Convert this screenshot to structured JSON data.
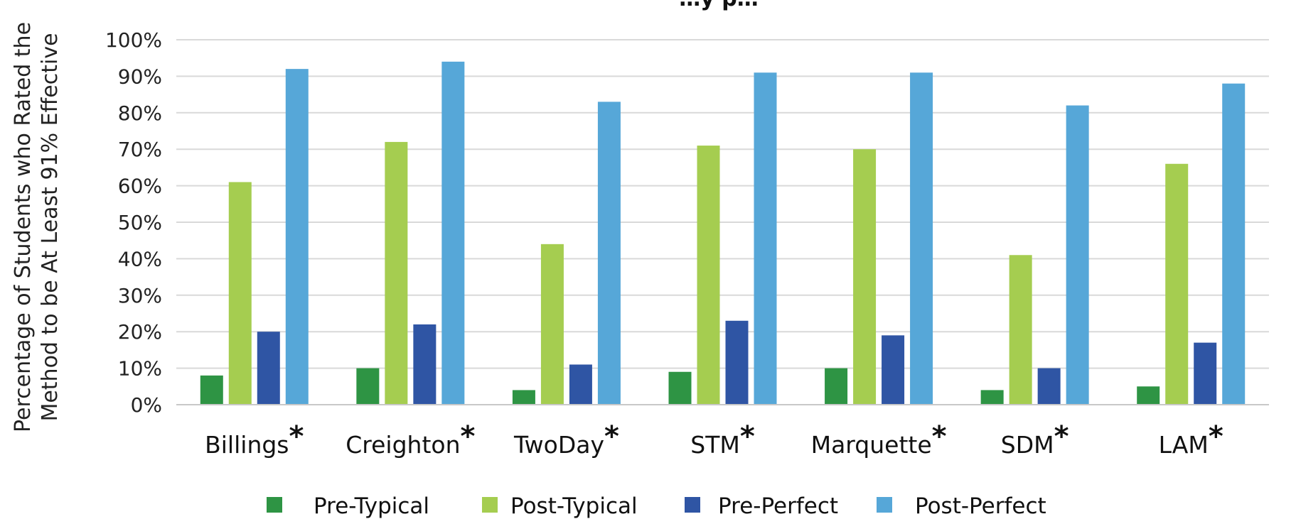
{
  "chart_data": {
    "type": "bar",
    "title": "…y p…",
    "ylabel_line1": "Percentage of Students who Rated the",
    "ylabel_line2": "Method to be At Least 91% Effective",
    "xlabel": "",
    "ylim": [
      0,
      100
    ],
    "ytick_values": [
      0,
      10,
      20,
      30,
      40,
      50,
      60,
      70,
      80,
      90,
      100
    ],
    "ytick_labels": [
      "0%",
      "10%",
      "20%",
      "30%",
      "40%",
      "50%",
      "60%",
      "70%",
      "80%",
      "90%",
      "100%"
    ],
    "categories": [
      "Billings",
      "Creighton",
      "TwoDay",
      "STM",
      "Marquette",
      "SDM",
      "LAM"
    ],
    "category_marker": "*",
    "grid": true,
    "legend_position": "bottom",
    "series": [
      {
        "name": "Pre-Typical",
        "color": "#2e9444",
        "values": [
          8,
          10,
          4,
          9,
          10,
          4,
          5
        ]
      },
      {
        "name": "Post-Typical",
        "color": "#a5cd50",
        "values": [
          61,
          72,
          44,
          71,
          70,
          41,
          66
        ]
      },
      {
        "name": "Pre-Perfect",
        "color": "#2f55a4",
        "values": [
          20,
          22,
          11,
          23,
          19,
          10,
          17
        ]
      },
      {
        "name": "Post-Perfect",
        "color": "#56a7d8",
        "values": [
          92,
          94,
          83,
          91,
          91,
          82,
          88
        ]
      }
    ]
  }
}
